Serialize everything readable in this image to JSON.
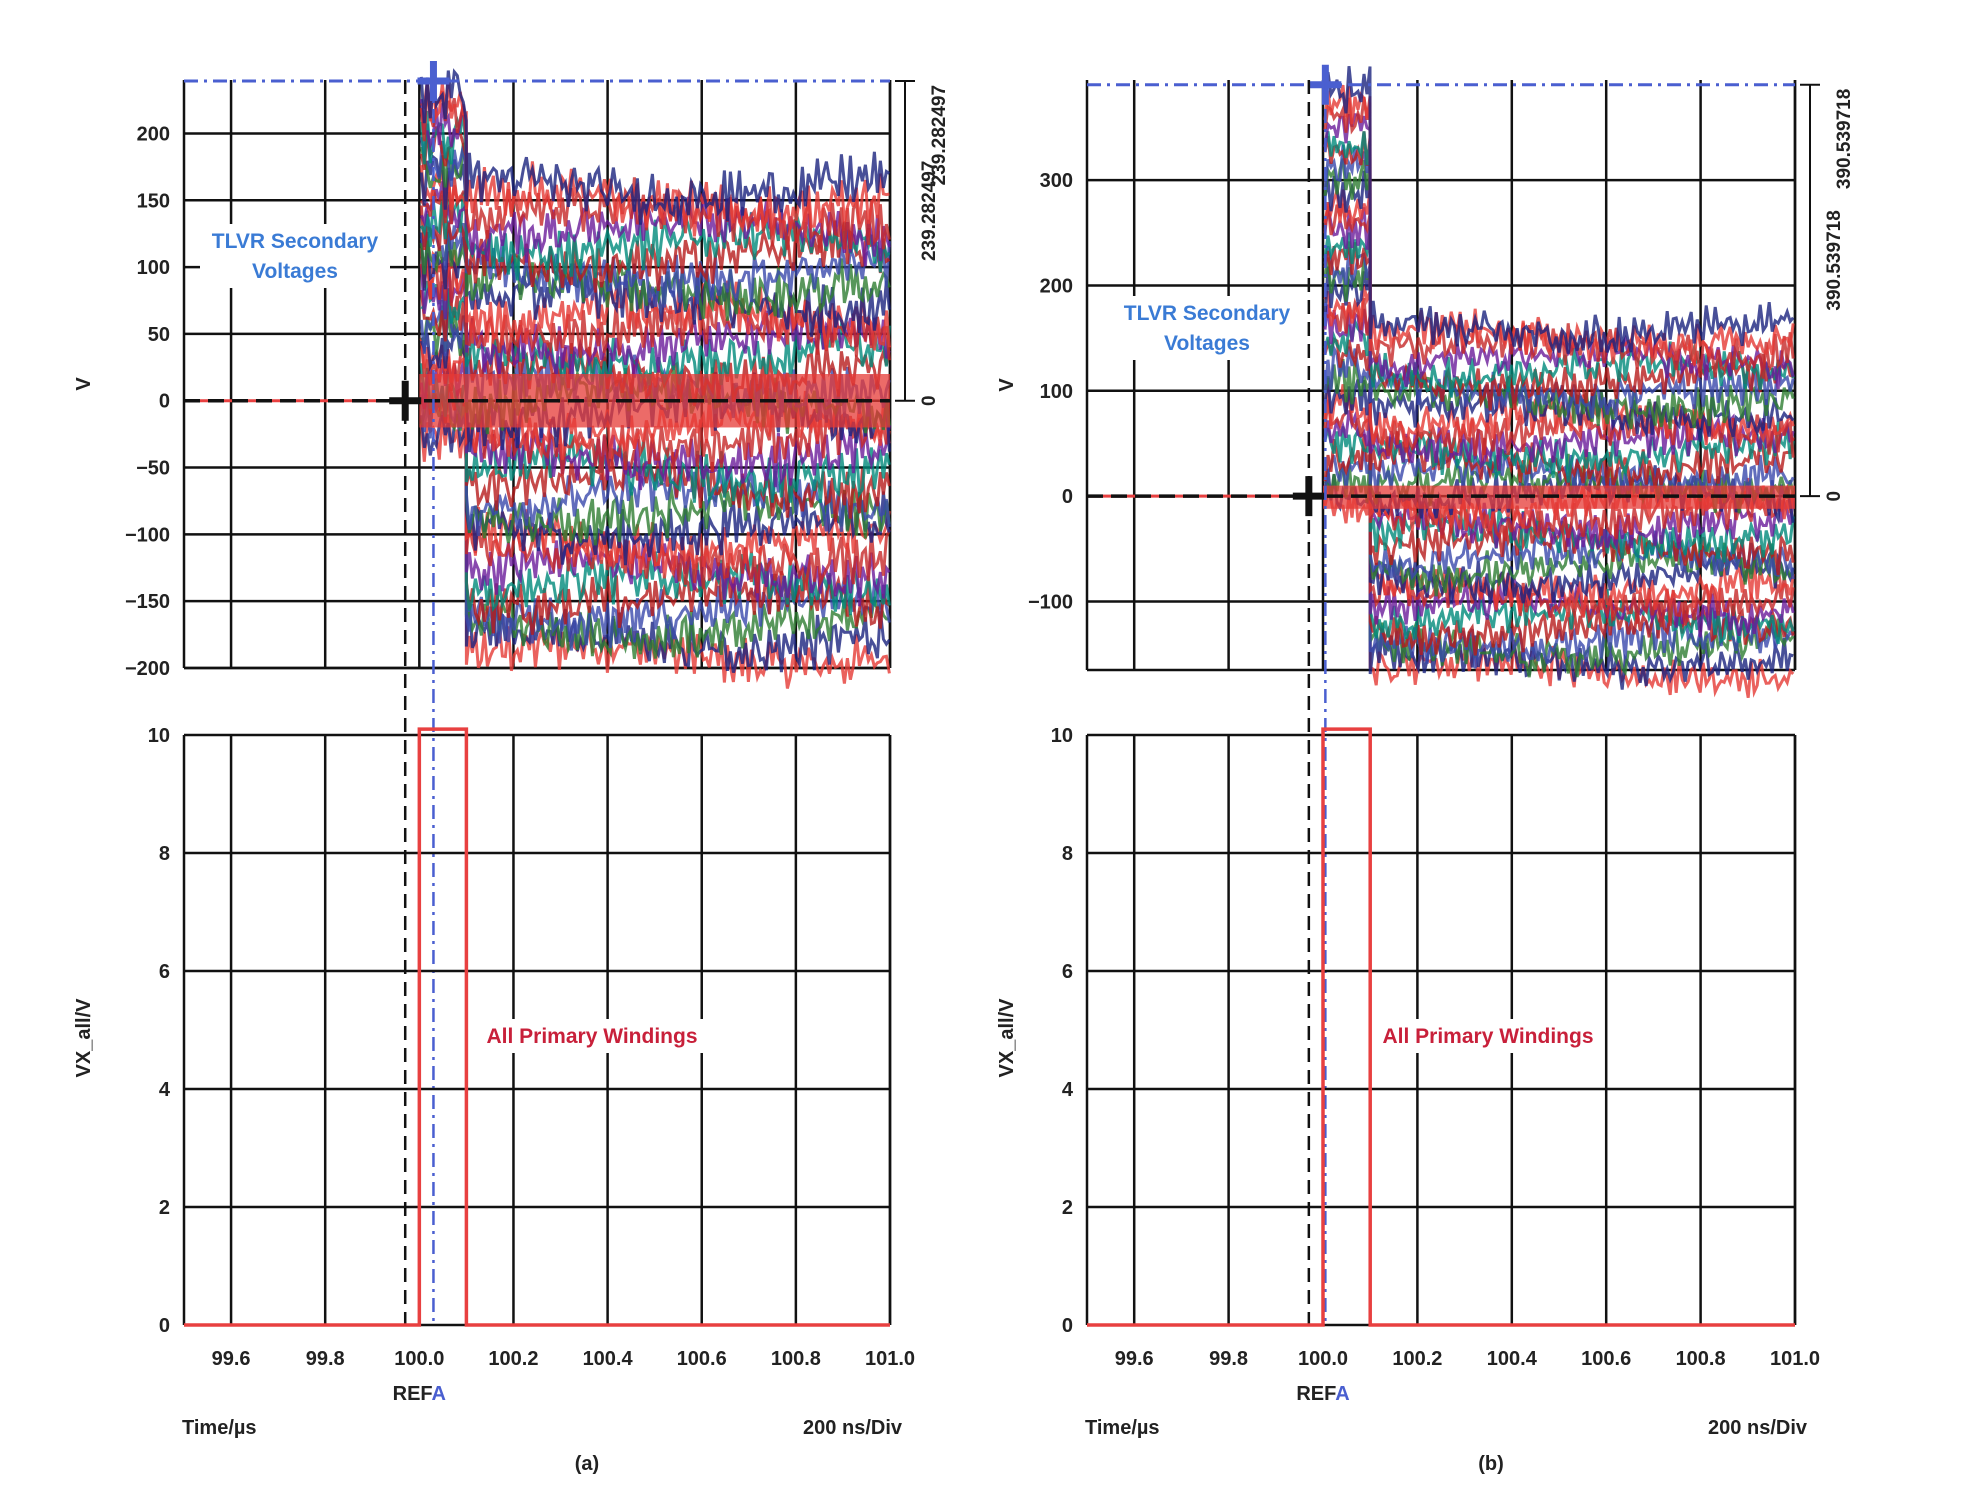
{
  "colors": {
    "grid": "#111111",
    "cursor_blue": "#4a5fd0",
    "primary_red": "#e84040",
    "annotation_blue": "#3a7bd5",
    "annotation_red": "#c8203a",
    "palette": [
      "#e53935",
      "#1a237e",
      "#2e7d32",
      "#3949ab",
      "#b71c1c",
      "#00897b",
      "#6a1b9a",
      "#c62828"
    ]
  },
  "chart_data": [
    {
      "panel": "a",
      "caption": "(a)",
      "type": "line",
      "x_label": "Time/µs",
      "time_div": "200 ns/Div",
      "ref_marker": {
        "text": "REF",
        "letter": "A"
      },
      "x_range": [
        99.5,
        101.0
      ],
      "x_ticks": [
        "99.6",
        "99.8",
        "100.0",
        "100.2",
        "100.4",
        "100.6",
        "100.8",
        "101.0"
      ],
      "x_tick_values": [
        99.6,
        99.8,
        100.0,
        100.2,
        100.4,
        100.6,
        100.8,
        101.0
      ],
      "top": {
        "ylabel": "V",
        "ylim": [
          -200,
          240
        ],
        "y_ticks": [
          200,
          150,
          100,
          50,
          0,
          -50,
          -100,
          -150,
          -200
        ],
        "y_tick_labels": [
          "200",
          "150",
          "100",
          "50",
          "0",
          "−50",
          "−100",
          "−150",
          "−200"
        ],
        "annotation": [
          "TLVR Secondary",
          "Voltages"
        ],
        "measure_labels": [
          "239.282497",
          "239.282497",
          "0"
        ],
        "measure_value": 239.282497,
        "cursor_x": 100.03,
        "ref_x": 99.97,
        "switch_on": 100.0,
        "switch_off": 100.1,
        "initial_peak": 230,
        "initial_floor": -30,
        "steady_high": 160,
        "steady_low": -190
      },
      "bottom": {
        "ylabel": "VX_all/V",
        "ylim": [
          0,
          10
        ],
        "y_ticks": [
          10,
          8,
          6,
          4,
          2,
          0
        ],
        "y_tick_labels": [
          "10",
          "8",
          "6",
          "4",
          "2",
          "0"
        ],
        "annotation": "All Primary Windings",
        "series": {
          "name": "All Primary Windings",
          "pulse_start": 100.0,
          "pulse_end": 100.1,
          "high": 10.1,
          "low": 0
        }
      }
    },
    {
      "panel": "b",
      "caption": "(b)",
      "type": "line",
      "x_label": "Time/µs",
      "time_div": "200 ns/Div",
      "ref_marker": {
        "text": "REF",
        "letter": "A"
      },
      "x_range": [
        99.5,
        101.0
      ],
      "x_ticks": [
        "99.6",
        "99.8",
        "100.0",
        "100.2",
        "100.4",
        "100.6",
        "100.8",
        "101.0"
      ],
      "x_tick_values": [
        99.6,
        99.8,
        100.0,
        100.2,
        100.4,
        100.6,
        100.8,
        101.0
      ],
      "top": {
        "ylabel": "V",
        "ylim": [
          -165,
          395
        ],
        "y_ticks": [
          300,
          200,
          100,
          0,
          -100
        ],
        "y_tick_labels": [
          "300",
          "200",
          "100",
          "0",
          "−100"
        ],
        "annotation": [
          "TLVR Secondary",
          "Voltages"
        ],
        "measure_labels": [
          "390.539718",
          "390.539718",
          "0"
        ],
        "measure_value": 390.539718,
        "cursor_x": 100.005,
        "ref_x": 99.97,
        "switch_on": 100.0,
        "switch_off": 100.1,
        "initial_peak": 385,
        "initial_floor": -10,
        "steady_high": 160,
        "steady_low": -165
      },
      "bottom": {
        "ylabel": "VX_all/V",
        "ylim": [
          0,
          10
        ],
        "y_ticks": [
          10,
          8,
          6,
          4,
          2,
          0
        ],
        "y_tick_labels": [
          "10",
          "8",
          "6",
          "4",
          "2",
          "0"
        ],
        "annotation": "All Primary Windings",
        "series": {
          "name": "All Primary Windings",
          "pulse_start": 100.0,
          "pulse_end": 100.1,
          "high": 10.1,
          "low": 0
        }
      }
    }
  ]
}
